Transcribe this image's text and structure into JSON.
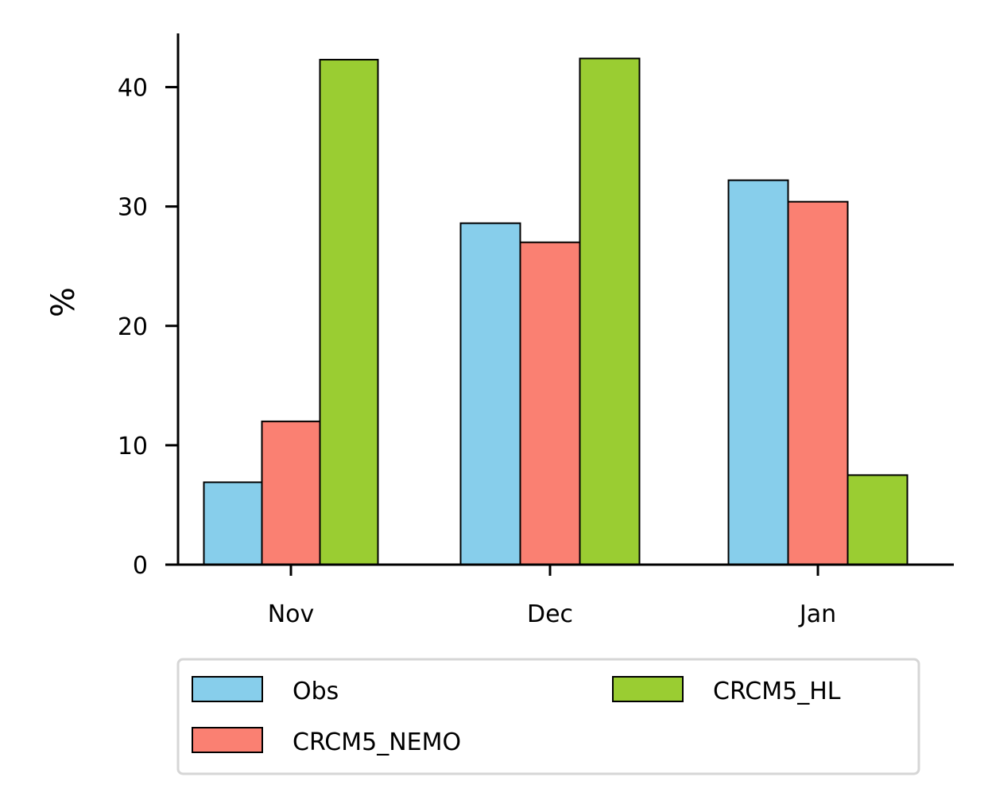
{
  "chart_data": {
    "type": "bar",
    "title": "",
    "xlabel": "",
    "ylabel": "%",
    "categories": [
      "Nov",
      "Dec",
      "Jan"
    ],
    "series": [
      {
        "name": "Obs",
        "values": [
          6.9,
          28.6,
          32.2
        ],
        "color": "#87ceeb"
      },
      {
        "name": "CRCM5_NEMO",
        "values": [
          12.0,
          27.0,
          30.4
        ],
        "color": "#fa8072"
      },
      {
        "name": "CRCM5_HL",
        "values": [
          42.3,
          42.4,
          7.5
        ],
        "color": "#9acd32"
      }
    ],
    "ylim": [
      0,
      44.5
    ],
    "yticks": [
      "0",
      "10",
      "20",
      "30",
      "40"
    ],
    "grid": false,
    "legend_position": "bottom-center",
    "legend_columns": 2
  }
}
